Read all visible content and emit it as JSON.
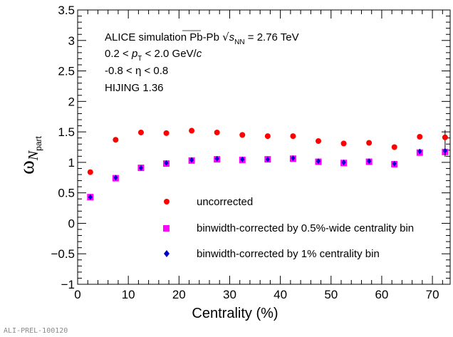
{
  "chart_data": {
    "type": "scatter",
    "xlabel": "Centrality (%)",
    "ylabel": "ω_Npart",
    "xlim": [
      0,
      73.5
    ],
    "ylim": [
      -1,
      3.5
    ],
    "x_ticks": [
      0,
      10,
      20,
      30,
      40,
      50,
      60,
      70
    ],
    "y_ticks": [
      -1,
      -0.5,
      0,
      0.5,
      1,
      1.5,
      2,
      2.5,
      3,
      3.5
    ],
    "y_tick_labels": [
      "−1",
      "−0.5",
      "0",
      "0.5",
      "1",
      "1.5",
      "2",
      "2.5",
      "3",
      "3.5"
    ],
    "annotations": {
      "line1_prefix": "ALICE simulation Pb-Pb ",
      "line1_s": "s",
      "line1_sub": "NN",
      "line1_suffix": " = 2.76 TeV",
      "line2_a": "0.2 < ",
      "line2_p": "p",
      "line2_sub": "T",
      "line2_b": " < 2.0 GeV/",
      "line2_c": "c",
      "line3": "-0.8 < η < 0.8",
      "line4": "HIJING 1.36"
    },
    "ylabel_parts": {
      "omega": "ω",
      "N": "N",
      "sub": "part"
    },
    "legend_placement": "bottom-right",
    "series": [
      {
        "name": "uncorrected",
        "marker": "circle",
        "color": "#ff0000",
        "x": [
          2.5,
          7.5,
          12.5,
          17.5,
          22.5,
          27.5,
          32.5,
          37.5,
          42.5,
          47.5,
          52.5,
          57.5,
          62.5,
          67.5,
          72.5
        ],
        "y": [
          0.84,
          1.37,
          1.49,
          1.48,
          1.52,
          1.49,
          1.45,
          1.43,
          1.43,
          1.35,
          1.31,
          1.32,
          1.25,
          1.42,
          1.41
        ],
        "err": [
          0,
          0,
          0,
          0,
          0,
          0,
          0,
          0,
          0,
          0,
          0,
          0,
          0,
          0,
          0.12
        ]
      },
      {
        "name": "binwidth-corrected by 0.5%-wide centrality bin",
        "marker": "square",
        "color": "#ff00ff",
        "x": [
          2.5,
          7.5,
          12.5,
          17.5,
          22.5,
          27.5,
          32.5,
          37.5,
          42.5,
          47.5,
          52.5,
          57.5,
          62.5,
          67.5,
          72.5
        ],
        "y": [
          0.43,
          0.74,
          0.91,
          0.98,
          1.03,
          1.05,
          1.04,
          1.05,
          1.06,
          1.01,
          0.99,
          1.01,
          0.97,
          1.16,
          1.17
        ],
        "err": [
          0,
          0,
          0,
          0,
          0,
          0,
          0,
          0,
          0,
          0,
          0,
          0,
          0,
          0,
          0
        ]
      },
      {
        "name": "binwidth-corrected by 1% centrality bin",
        "marker": "diamond",
        "color": "#0000cc",
        "x": [
          2.5,
          7.5,
          12.5,
          17.5,
          22.5,
          27.5,
          32.5,
          37.5,
          42.5,
          47.5,
          52.5,
          57.5,
          62.5,
          67.5,
          72.5
        ],
        "y": [
          0.43,
          0.75,
          0.91,
          0.99,
          1.04,
          1.06,
          1.05,
          1.05,
          1.07,
          1.02,
          1.0,
          1.02,
          0.98,
          1.18,
          1.19
        ],
        "err": [
          0,
          0,
          0,
          0,
          0,
          0,
          0,
          0,
          0,
          0,
          0,
          0,
          0,
          0,
          0.1
        ]
      }
    ]
  },
  "footer": {
    "preliminary_id": "ALI-PREL-100120"
  }
}
